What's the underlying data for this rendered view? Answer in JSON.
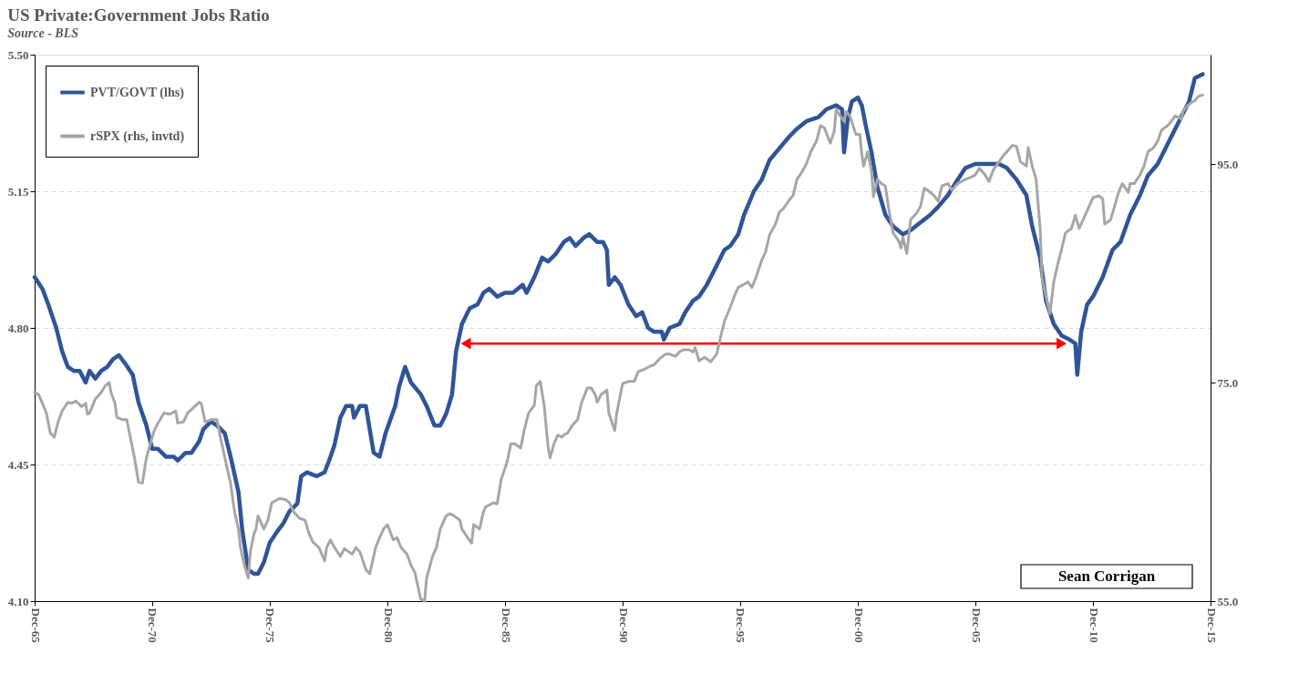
{
  "chart_data": {
    "type": "line",
    "title": "US Private:Government Jobs Ratio",
    "subtitle": "Source - BLS",
    "xlim": [
      "1965-12",
      "2015-12"
    ],
    "xticks": [
      {
        "value": "1965-12",
        "label": "Dec-65"
      },
      {
        "value": "1970-12",
        "label": "Dec-70"
      },
      {
        "value": "1975-12",
        "label": "Dec-75"
      },
      {
        "value": "1980-12",
        "label": "Dec-80"
      },
      {
        "value": "1985-12",
        "label": "Dec-85"
      },
      {
        "value": "1990-12",
        "label": "Dec-90"
      },
      {
        "value": "1995-12",
        "label": "Dec-95"
      },
      {
        "value": "2000-12",
        "label": "Dec-00"
      },
      {
        "value": "2005-12",
        "label": "Dec-05"
      },
      {
        "value": "2010-12",
        "label": "Dec-10"
      },
      {
        "value": "2015-12",
        "label": "Dec-15"
      }
    ],
    "ylim": [
      4.1,
      5.5
    ],
    "yticks": [
      {
        "value": 4.1,
        "label": "4.10"
      },
      {
        "value": 4.45,
        "label": "4.45"
      },
      {
        "value": 4.8,
        "label": "4.80"
      },
      {
        "value": 5.15,
        "label": "5.15"
      },
      {
        "value": 5.5,
        "label": "5.50"
      }
    ],
    "y2lim": [
      55,
      105
    ],
    "y2ticks": [
      {
        "value": 55,
        "label": "55.0"
      },
      {
        "value": 75,
        "label": "75.0"
      },
      {
        "value": 95,
        "label": "95.0"
      }
    ],
    "grid": "y",
    "legend": "top left",
    "annotations": [
      "Sean Corrigan"
    ],
    "series": [
      {
        "name": "PVT/GOVT (lhs)",
        "color": "#2f5597",
        "x": [
          "1965-12",
          "1966-04",
          "1966-07",
          "1966-11",
          "1967-02",
          "1967-05",
          "1967-08",
          "1967-11",
          "1968-02",
          "1968-04",
          "1968-07",
          "1968-10",
          "1969-01",
          "1969-04",
          "1969-07",
          "1969-10",
          "1970-02",
          "1970-05",
          "1970-07",
          "1970-09",
          "1970-12",
          "1971-03",
          "1971-07",
          "1971-11",
          "1972-01",
          "1972-05",
          "1972-08",
          "1972-12",
          "1973-02",
          "1973-06",
          "1973-09",
          "1974-01",
          "1974-04",
          "1974-08",
          "1974-10",
          "1975-01",
          "1975-04",
          "1975-06",
          "1975-09",
          "1975-12",
          "1976-04",
          "1976-07",
          "1976-10",
          "1977-02",
          "1977-04",
          "1977-07",
          "1977-12",
          "1978-04",
          "1978-07",
          "1978-09",
          "1978-12",
          "1979-03",
          "1979-06",
          "1979-07",
          "1979-10",
          "1980-01",
          "1980-03",
          "1980-05",
          "1980-08",
          "1980-11",
          "1981-04",
          "1981-06",
          "1981-09",
          "1981-12",
          "1982-05",
          "1982-08",
          "1982-12",
          "1983-03",
          "1983-06",
          "1983-09",
          "1983-11",
          "1984-02",
          "1984-06",
          "1984-10",
          "1985-01",
          "1985-04",
          "1985-08",
          "1985-12",
          "1986-04",
          "1986-09",
          "1986-11",
          "1987-03",
          "1987-07",
          "1987-10",
          "1988-02",
          "1988-06",
          "1988-09",
          "1988-12",
          "1989-02",
          "1989-04",
          "1989-07",
          "1989-11",
          "1990-02",
          "1990-04",
          "1990-05",
          "1990-08",
          "1990-11",
          "1991-03",
          "1991-07",
          "1991-10",
          "1992-01",
          "1992-04",
          "1992-08",
          "1992-09",
          "1992-12",
          "1993-05",
          "1993-08",
          "1993-12",
          "1994-03",
          "1994-07",
          "1994-12",
          "1995-04",
          "1995-07",
          "1995-11",
          "1996-02",
          "1996-07",
          "1996-11",
          "1997-03",
          "1997-08",
          "1998-01",
          "1998-05",
          "1998-10",
          "1999-04",
          "1999-08",
          "2000-01",
          "2000-04",
          "2000-05",
          "2000-07",
          "2000-09",
          "2000-12",
          "2001-02",
          "2001-04",
          "2001-07",
          "2001-10",
          "2002-02",
          "2002-06",
          "2002-11",
          "2003-03",
          "2003-08",
          "2004-01",
          "2004-05",
          "2004-10",
          "2005-03",
          "2005-07",
          "2005-12",
          "2006-05",
          "2006-12",
          "2007-04",
          "2007-09",
          "2008-02",
          "2008-05",
          "2008-09",
          "2008-12",
          "2009-04",
          "2009-08",
          "2009-12",
          "2010-03",
          "2010-04",
          "2010-06",
          "2010-09",
          "2010-12",
          "2011-05",
          "2011-10",
          "2012-02",
          "2012-07",
          "2012-12",
          "2013-04",
          "2013-09",
          "2014-04",
          "2014-09",
          "2015-01",
          "2015-04",
          "2015-08"
        ],
        "values": [
          4.93,
          4.9,
          4.86,
          4.8,
          4.74,
          4.7,
          4.69,
          4.69,
          4.66,
          4.69,
          4.67,
          4.69,
          4.7,
          4.72,
          4.73,
          4.71,
          4.68,
          4.61,
          4.58,
          4.55,
          4.49,
          4.49,
          4.47,
          4.47,
          4.46,
          4.48,
          4.48,
          4.51,
          4.54,
          4.56,
          4.55,
          4.53,
          4.47,
          4.38,
          4.28,
          4.18,
          4.17,
          4.17,
          4.2,
          4.25,
          4.28,
          4.3,
          4.33,
          4.35,
          4.42,
          4.43,
          4.42,
          4.43,
          4.47,
          4.5,
          4.57,
          4.6,
          4.6,
          4.57,
          4.6,
          4.6,
          4.54,
          4.48,
          4.47,
          4.53,
          4.6,
          4.65,
          4.7,
          4.66,
          4.63,
          4.6,
          4.55,
          4.55,
          4.58,
          4.63,
          4.74,
          4.81,
          4.85,
          4.86,
          4.89,
          4.9,
          4.88,
          4.89,
          4.89,
          4.91,
          4.89,
          4.93,
          4.98,
          4.97,
          4.99,
          5.02,
          5.03,
          5.01,
          5.02,
          5.03,
          5.04,
          5.02,
          5.02,
          5.0,
          4.91,
          4.93,
          4.91,
          4.86,
          4.83,
          4.84,
          4.8,
          4.79,
          4.79,
          4.77,
          4.8,
          4.81,
          4.84,
          4.87,
          4.88,
          4.91,
          4.96,
          5.0,
          5.01,
          5.04,
          5.09,
          5.15,
          5.18,
          5.23,
          5.26,
          5.29,
          5.31,
          5.33,
          5.34,
          5.36,
          5.37,
          5.36,
          5.25,
          5.34,
          5.38,
          5.39,
          5.37,
          5.32,
          5.25,
          5.16,
          5.09,
          5.06,
          5.04,
          5.05,
          5.07,
          5.09,
          5.11,
          5.14,
          5.18,
          5.21,
          5.22,
          5.22,
          5.22,
          5.21,
          5.18,
          5.14,
          5.06,
          4.98,
          4.87,
          4.81,
          4.78,
          4.77,
          4.76,
          4.68,
          4.79,
          4.86,
          4.88,
          4.93,
          5.0,
          5.02,
          5.09,
          5.14,
          5.19,
          5.22,
          5.29,
          5.34,
          5.38,
          5.44,
          5.45
        ]
      },
      {
        "name": "rSPX (rhs, invtd)",
        "color": "#a6a6a6",
        "axis": "y2",
        "x": [
          "1965-12",
          "1966-02",
          "1966-04",
          "1966-06",
          "1966-08",
          "1966-10",
          "1966-12",
          "1967-02",
          "1967-05",
          "1967-07",
          "1967-09",
          "1967-12",
          "1968-02",
          "1968-03",
          "1968-04",
          "1968-07",
          "1968-09",
          "1968-10",
          "1968-12",
          "1969-02",
          "1969-03",
          "1969-05",
          "1969-06",
          "1969-09",
          "1969-11",
          "1970-01",
          "1970-03",
          "1970-05",
          "1970-07",
          "1970-09",
          "1970-11",
          "1971-01",
          "1971-03",
          "1971-06",
          "1971-09",
          "1971-12",
          "1972-01",
          "1972-04",
          "1972-06",
          "1972-09",
          "1972-12",
          "1973-01",
          "1973-03",
          "1973-06",
          "1973-09",
          "1973-11",
          "1974-02",
          "1974-04",
          "1974-06",
          "1974-08",
          "1974-09",
          "1974-11",
          "1975-01",
          "1975-02",
          "1975-04",
          "1975-05",
          "1975-06",
          "1975-09",
          "1975-11",
          "1976-01",
          "1976-05",
          "1976-08",
          "1976-10",
          "1976-12",
          "1977-03",
          "1977-06",
          "1977-08",
          "1977-10",
          "1978-01",
          "1978-04",
          "1978-05",
          "1978-07",
          "1978-09",
          "1978-12",
          "1979-02",
          "1979-06",
          "1979-08",
          "1979-10",
          "1980-01",
          "1980-03",
          "1980-06",
          "1980-08",
          "1980-10",
          "1980-12",
          "1981-03",
          "1981-05",
          "1981-07",
          "1981-10",
          "1981-12",
          "1982-02",
          "1982-05",
          "1982-07",
          "1982-08",
          "1982-11",
          "1983-01",
          "1983-03",
          "1983-06",
          "1983-08",
          "1983-10",
          "1984-01",
          "1984-02",
          "1984-05",
          "1984-07",
          "1984-08",
          "1984-11",
          "1985-01",
          "1985-02",
          "1985-06",
          "1985-08",
          "1985-10",
          "1986-01",
          "1986-03",
          "1986-05",
          "1986-08",
          "1986-10",
          "1986-12",
          "1987-03",
          "1987-04",
          "1987-06",
          "1987-08",
          "1987-10",
          "1987-11",
          "1988-01",
          "1988-03",
          "1988-05",
          "1988-06",
          "1988-08",
          "1988-10",
          "1989-01",
          "1989-03",
          "1989-06",
          "1989-08",
          "1989-10",
          "1989-11",
          "1990-01",
          "1990-04",
          "1990-05",
          "1990-08",
          "1990-09",
          "1990-12",
          "1991-03",
          "1991-06",
          "1991-08",
          "1991-11",
          "1992-02",
          "1992-04",
          "1992-07",
          "1992-10",
          "1992-12",
          "1993-03",
          "1993-05",
          "1993-07",
          "1993-10",
          "1993-12",
          "1994-01",
          "1994-03",
          "1994-06",
          "1994-09",
          "1994-12",
          "1995-02",
          "1995-04",
          "1995-07",
          "1995-09",
          "1995-11",
          "1996-02",
          "1996-04",
          "1996-06",
          "1996-08",
          "1996-11",
          "1997-01",
          "1997-03",
          "1997-06",
          "1997-08",
          "1997-10",
          "1998-01",
          "1998-03",
          "1998-05",
          "1998-08",
          "1998-10",
          "1998-12",
          "1999-03",
          "1999-05",
          "1999-07",
          "1999-10",
          "1999-12",
          "2000-01",
          "2000-03",
          "2000-05",
          "2000-06",
          "2000-08",
          "2000-11",
          "2001-01",
          "2001-02",
          "2001-03",
          "2001-05",
          "2001-07",
          "2001-08",
          "2001-10",
          "2001-12",
          "2002-02",
          "2002-04",
          "2002-06",
          "2002-09",
          "2002-10",
          "2002-11",
          "2003-01",
          "2003-03",
          "2003-06",
          "2003-08",
          "2003-10",
          "2004-01",
          "2004-03",
          "2004-05",
          "2004-07",
          "2004-10",
          "2004-12",
          "2005-03",
          "2005-05",
          "2005-07",
          "2005-10",
          "2005-12",
          "2006-02",
          "2006-05",
          "2006-07",
          "2006-09",
          "2006-12",
          "2007-02",
          "2007-04",
          "2007-07",
          "2007-09",
          "2007-11",
          "2008-02",
          "2008-03",
          "2008-05",
          "2008-07",
          "2008-09",
          "2008-10",
          "2008-12",
          "2009-02",
          "2009-04",
          "2009-06",
          "2009-08",
          "2009-10",
          "2010-01",
          "2010-03",
          "2010-05",
          "2010-07",
          "2010-10",
          "2010-12",
          "2011-03",
          "2011-05",
          "2011-06",
          "2011-09",
          "2011-11",
          "2012-01",
          "2012-03",
          "2012-06",
          "2012-07",
          "2012-09",
          "2012-12",
          "2013-02",
          "2013-04",
          "2013-07",
          "2013-09",
          "2013-11",
          "2014-02",
          "2014-04",
          "2014-06",
          "2014-09",
          "2014-10",
          "2014-12",
          "2015-02",
          "2015-04",
          "2015-06",
          "2015-08"
        ],
        "values": [
          74.1,
          73.9,
          73.1,
          72.2,
          70.4,
          70.0,
          71.4,
          72.4,
          73.2,
          73.1,
          73.3,
          72.8,
          73.1,
          72.1,
          72.2,
          73.5,
          73.9,
          74.1,
          74.7,
          75.0,
          74.1,
          73.1,
          71.8,
          71.6,
          71.6,
          69.8,
          68.1,
          65.9,
          65.8,
          68.1,
          69.4,
          70.6,
          71.3,
          72.2,
          72.1,
          72.4,
          71.3,
          71.4,
          72.2,
          72.7,
          73.2,
          73.1,
          71.4,
          71.6,
          71.6,
          69.8,
          67.3,
          65.8,
          63.2,
          61.6,
          59.9,
          58.3,
          57.1,
          59.5,
          61.2,
          61.6,
          62.8,
          61.6,
          62.4,
          64.0,
          64.4,
          64.3,
          64.0,
          63.2,
          62.6,
          62.4,
          61.2,
          60.4,
          59.9,
          58.7,
          59.9,
          60.6,
          59.9,
          59.1,
          59.8,
          59.3,
          59.9,
          59.5,
          57.9,
          57.5,
          59.9,
          60.8,
          61.6,
          62.0,
          60.6,
          60.8,
          59.9,
          59.3,
          58.3,
          57.6,
          55.2,
          55.0,
          57.1,
          59.1,
          59.9,
          61.6,
          62.8,
          63.0,
          62.8,
          62.4,
          61.6,
          60.8,
          60.3,
          62.0,
          61.6,
          63.2,
          63.6,
          64.0,
          63.9,
          66.1,
          67.7,
          69.4,
          69.4,
          69.0,
          70.8,
          72.2,
          72.9,
          74.7,
          75.1,
          72.9,
          69.1,
          68.1,
          69.4,
          70.2,
          70.0,
          70.2,
          70.4,
          71.0,
          71.6,
          73.1,
          74.5,
          74.5,
          73.9,
          73.2,
          73.9,
          74.3,
          72.2,
          70.6,
          72.2,
          74.9,
          75.1,
          75.1,
          76.0,
          76.2,
          76.5,
          76.6,
          77.2,
          77.6,
          77.6,
          77.4,
          77.8,
          78.0,
          78.0,
          77.8,
          78.2,
          77.0,
          77.3,
          76.9,
          77.6,
          79.2,
          80.6,
          81.9,
          82.9,
          83.7,
          84.0,
          84.2,
          83.7,
          84.6,
          86.2,
          87.0,
          88.5,
          89.5,
          90.6,
          90.9,
          91.7,
          92.1,
          93.6,
          94.4,
          95.1,
          96.1,
          97.1,
          98.5,
          98.3,
          96.9,
          98.0,
          100.0,
          99.4,
          98.9,
          99.8,
          99.4,
          97.7,
          97.7,
          95.9,
          94.8,
          96.1,
          94.4,
          92.0,
          93.6,
          93.2,
          93.0,
          90.7,
          88.7,
          87.9,
          87.3,
          88.3,
          86.8,
          89.9,
          90.5,
          91.1,
          92.8,
          92.4,
          92.1,
          91.6,
          93.0,
          93.2,
          92.6,
          93.2,
          93.4,
          93.6,
          93.8,
          94.0,
          94.6,
          94.0,
          93.4,
          94.4,
          95.2,
          95.7,
          96.1,
          96.7,
          96.6,
          95.2,
          94.8,
          96.5,
          94.8,
          93.6,
          89.1,
          84.6,
          82.9,
          81.3,
          84.2,
          85.8,
          87.2,
          88.7,
          89.1,
          90.3,
          89.1,
          89.9,
          91.1,
          91.9,
          92.1,
          91.8,
          89.5,
          89.9,
          91.1,
          92.4,
          93.2,
          92.4,
          93.2,
          93.2,
          94.0,
          94.8,
          96.1,
          96.5,
          97.1,
          98.1,
          98.5,
          98.9,
          99.4,
          99.1,
          99.8,
          100.3,
          100.6,
          100.8,
          101.2,
          101.3
        ]
      },
      {
        "color": "#ff0000",
        "marker": "triangle",
        "x": [
          "1984-04",
          "2009-08"
        ],
        "values": [
          4.76,
          4.76
        ]
      }
    ]
  }
}
